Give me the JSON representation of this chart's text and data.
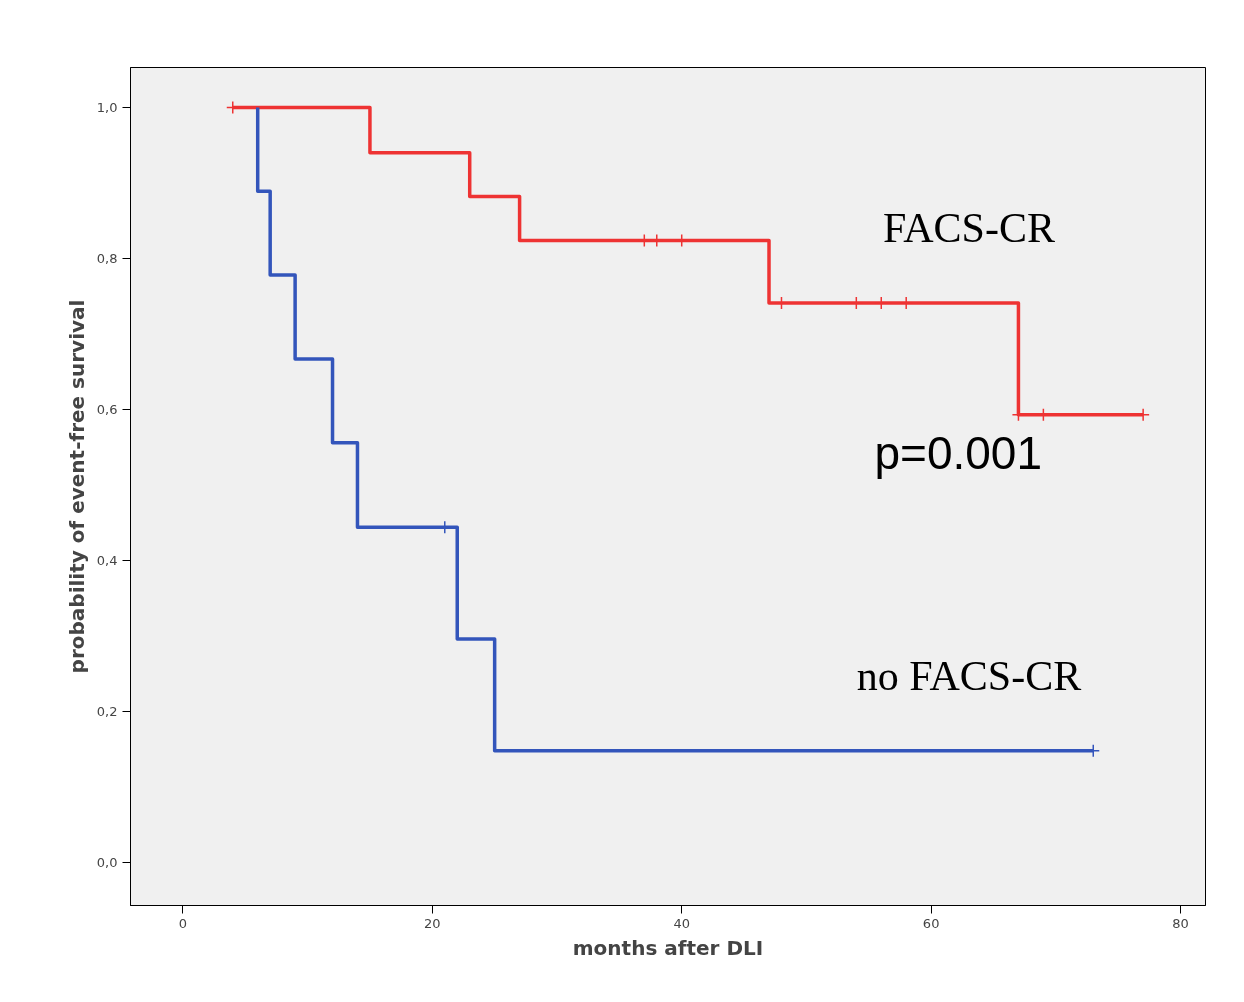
{
  "chart_data": {
    "type": "step",
    "xlabel": "months after DLI",
    "ylabel": "probability of event-free survival",
    "xlim": [
      -4.2,
      82
    ],
    "ylim": [
      -0.057,
      1.053
    ],
    "xticks": [
      0,
      20,
      40,
      60,
      80
    ],
    "yticks": [
      {
        "value": 0,
        "label": "0,0"
      },
      {
        "value": 0.2,
        "label": "0,2"
      },
      {
        "value": 0.4,
        "label": "0,4"
      },
      {
        "value": 0.6,
        "label": "0,6"
      },
      {
        "value": 0.8,
        "label": "0,8"
      },
      {
        "value": 1.0,
        "label": "1,0"
      }
    ],
    "grid": false,
    "annotations": [
      "p=0.001"
    ],
    "series": [
      {
        "name": "FACS-CR",
        "color": "#ee3333",
        "x": [
          4,
          15,
          23,
          27,
          47,
          67,
          77
        ],
        "values": [
          1.0,
          0.94,
          0.882,
          0.824,
          0.741,
          0.593,
          0.593
        ]
      },
      {
        "name": "no FACS-CR",
        "color": "#3355bb",
        "x": [
          6,
          6,
          7,
          9,
          12,
          14,
          22,
          25,
          73
        ],
        "values": [
          1.0,
          0.889,
          0.778,
          0.667,
          0.556,
          0.444,
          0.296,
          0.148,
          0.148
        ]
      },
      {
        "type": "scatter",
        "marker": "cross",
        "color": "#ee3333",
        "x": [
          4,
          37,
          38,
          40,
          48,
          54,
          56,
          58,
          67,
          69,
          77
        ],
        "values": [
          1.0,
          0.824,
          0.824,
          0.824,
          0.741,
          0.741,
          0.741,
          0.741,
          0.593,
          0.593,
          0.593
        ]
      },
      {
        "type": "scatter",
        "marker": "cross",
        "color": "#3355bb",
        "x": [
          21,
          73
        ],
        "values": [
          0.444,
          0.148
        ]
      }
    ]
  }
}
